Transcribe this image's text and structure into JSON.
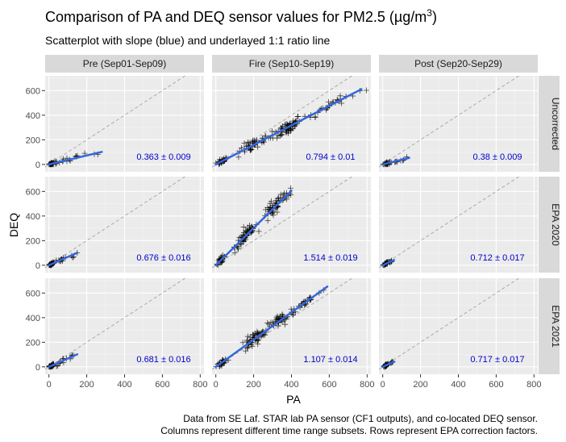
{
  "chart_data": {
    "type": "scatter",
    "title": "Comparison of PA and DEQ sensor values for PM2.5 (µg/m",
    "title_superscript": "3",
    "title_close": ")",
    "subtitle": "Scatterplot with slope (blue) and underlayed 1:1 ratio line",
    "xlabel": "PA",
    "ylabel": "DEQ",
    "xlim": [
      -20,
      820
    ],
    "ylim": [
      -60,
      720
    ],
    "x_ticks": [
      0,
      200,
      400,
      600,
      800
    ],
    "y_ticks": [
      0,
      200,
      400,
      600
    ],
    "columns": [
      "Pre (Sep01-Sep09)",
      "Fire (Sep10-Sep19)",
      "Post (Sep20-Sep29)"
    ],
    "rows": [
      "Uncorrected",
      "EPA 2020",
      "EPA 2021"
    ],
    "caption_lines": [
      "Data from SE Laf. STAR lab PA sensor (CF1 outputs), and co-located DEQ sensor.",
      "Columns represent different time range subsets. Rows represent EPA correction factors."
    ],
    "colors": {
      "panel_bg": "#ebebeb",
      "grid": "#ffffff",
      "strip_bg": "#d9d9d9",
      "fit_line": "#3366dd",
      "ratio_line": "#aaaaaa",
      "points": "#000000",
      "annotation": "#0000cc"
    },
    "panels": [
      {
        "col": 0,
        "row": 0,
        "slope_label": "0.363 ± 0.009",
        "slope": 0.363,
        "x_range": [
          0,
          280
        ],
        "clusters": [
          {
            "xc": 15,
            "xs": 12,
            "ys": 8,
            "n": 30
          },
          {
            "xc": 60,
            "xs": 40,
            "ys": 18,
            "n": 12
          },
          {
            "xc": 150,
            "xs": 40,
            "ys": 25,
            "n": 6
          },
          {
            "xc": 250,
            "xs": 20,
            "ys": 10,
            "n": 2
          }
        ]
      },
      {
        "col": 1,
        "row": 0,
        "slope_label": "0.794 ± 0.01",
        "slope": 0.794,
        "x_range": [
          0,
          770
        ],
        "clusters": [
          {
            "xc": 30,
            "xs": 25,
            "ys": 15,
            "n": 25
          },
          {
            "xc": 200,
            "xs": 70,
            "ys": 40,
            "n": 40
          },
          {
            "xc": 380,
            "xs": 60,
            "ys": 50,
            "n": 60
          },
          {
            "xc": 600,
            "xs": 120,
            "ys": 25,
            "n": 30
          }
        ]
      },
      {
        "col": 2,
        "row": 0,
        "slope_label": "0.38 ± 0.009",
        "slope": 0.38,
        "x_range": [
          0,
          140
        ],
        "clusters": [
          {
            "xc": 20,
            "xs": 15,
            "ys": 10,
            "n": 30
          },
          {
            "xc": 90,
            "xs": 30,
            "ys": 12,
            "n": 8
          }
        ]
      },
      {
        "col": 0,
        "row": 1,
        "slope_label": "0.676 ± 0.016",
        "slope": 0.676,
        "x_range": [
          0,
          150
        ],
        "clusters": [
          {
            "xc": 15,
            "xs": 12,
            "ys": 8,
            "n": 30
          },
          {
            "xc": 70,
            "xs": 30,
            "ys": 18,
            "n": 10
          },
          {
            "xc": 130,
            "xs": 20,
            "ys": 15,
            "n": 4
          }
        ]
      },
      {
        "col": 1,
        "row": 1,
        "slope_label": "1.514 ± 0.019",
        "slope": 1.514,
        "x_range": [
          0,
          400
        ],
        "clusters": [
          {
            "xc": 25,
            "xs": 20,
            "ys": 20,
            "n": 25
          },
          {
            "xc": 160,
            "xs": 50,
            "ys": 45,
            "n": 60
          },
          {
            "xc": 300,
            "xs": 45,
            "ys": 60,
            "n": 40
          },
          {
            "xc": 370,
            "xs": 30,
            "ys": 30,
            "n": 15
          }
        ]
      },
      {
        "col": 2,
        "row": 1,
        "slope_label": "0.712 ± 0.017",
        "slope": 0.712,
        "x_range": [
          0,
          60
        ],
        "clusters": [
          {
            "xc": 18,
            "xs": 12,
            "ys": 8,
            "n": 30
          },
          {
            "xc": 45,
            "xs": 10,
            "ys": 8,
            "n": 6
          }
        ]
      },
      {
        "col": 0,
        "row": 2,
        "slope_label": "0.681 ± 0.016",
        "slope": 0.681,
        "x_range": [
          0,
          150
        ],
        "clusters": [
          {
            "xc": 15,
            "xs": 12,
            "ys": 8,
            "n": 30
          },
          {
            "xc": 70,
            "xs": 30,
            "ys": 18,
            "n": 10
          },
          {
            "xc": 130,
            "xs": 20,
            "ys": 15,
            "n": 4
          }
        ]
      },
      {
        "col": 1,
        "row": 2,
        "slope_label": "1.107 ± 0.014",
        "slope": 1.107,
        "x_range": [
          0,
          590
        ],
        "clusters": [
          {
            "xc": 30,
            "xs": 25,
            "ys": 18,
            "n": 25
          },
          {
            "xc": 200,
            "xs": 60,
            "ys": 45,
            "n": 55
          },
          {
            "xc": 340,
            "xs": 60,
            "ys": 55,
            "n": 40
          },
          {
            "xc": 480,
            "xs": 70,
            "ys": 20,
            "n": 25
          }
        ]
      },
      {
        "col": 2,
        "row": 2,
        "slope_label": "0.717 ± 0.017",
        "slope": 0.717,
        "x_range": [
          0,
          60
        ],
        "clusters": [
          {
            "xc": 18,
            "xs": 12,
            "ys": 8,
            "n": 30
          },
          {
            "xc": 45,
            "xs": 10,
            "ys": 8,
            "n": 6
          }
        ]
      }
    ]
  }
}
